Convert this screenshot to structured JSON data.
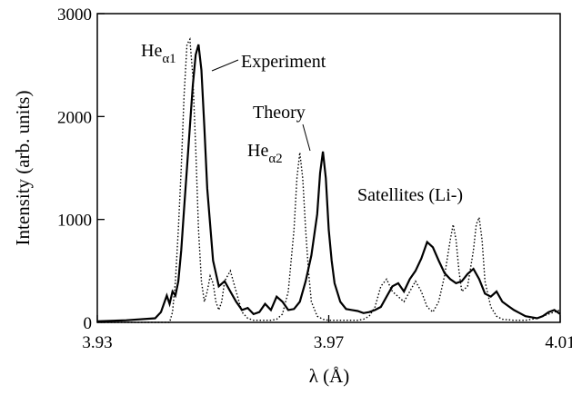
{
  "chart_data": {
    "type": "line",
    "xlabel": "λ (Å)",
    "ylabel": "Intensity (arb. units)",
    "xlim": [
      3.93,
      4.01
    ],
    "ylim": [
      0,
      3000
    ],
    "xticks": [
      "3.93",
      "3.97",
      "4.01"
    ],
    "yticks": [
      "0",
      "1000",
      "2000",
      "3000"
    ],
    "grid": false,
    "annotations": {
      "he_alpha1": {
        "base": "He",
        "sub": "α1"
      },
      "he_alpha2": {
        "base": "He",
        "sub": "α2"
      },
      "experiment": "Experiment",
      "theory": "Theory",
      "satellites": "Satellites (Li-)"
    },
    "series": [
      {
        "name": "Experiment",
        "style": "solid",
        "color": "#000000",
        "x": [
          3.93,
          3.935,
          3.94,
          3.941,
          3.942,
          3.9425,
          3.943,
          3.9435,
          3.944,
          3.9445,
          3.945,
          3.9455,
          3.946,
          3.9465,
          3.947,
          3.9475,
          3.948,
          3.9485,
          3.949,
          3.95,
          3.951,
          3.952,
          3.953,
          3.954,
          3.955,
          3.956,
          3.957,
          3.958,
          3.959,
          3.96,
          3.961,
          3.962,
          3.963,
          3.964,
          3.965,
          3.966,
          3.967,
          3.968,
          3.9685,
          3.969,
          3.9695,
          3.97,
          3.9705,
          3.971,
          3.972,
          3.973,
          3.974,
          3.975,
          3.976,
          3.977,
          3.978,
          3.979,
          3.98,
          3.981,
          3.982,
          3.983,
          3.984,
          3.985,
          3.986,
          3.987,
          3.988,
          3.989,
          3.99,
          3.991,
          3.992,
          3.993,
          3.994,
          3.995,
          3.996,
          3.997,
          3.998,
          3.999,
          4.0,
          4.001,
          4.002,
          4.003,
          4.004,
          4.005,
          4.006,
          4.007,
          4.008,
          4.009,
          4.01
        ],
        "y": [
          10,
          20,
          40,
          100,
          260,
          180,
          300,
          260,
          400,
          700,
          1100,
          1500,
          1900,
          2300,
          2600,
          2700,
          2450,
          1900,
          1300,
          600,
          350,
          400,
          300,
          200,
          120,
          140,
          80,
          100,
          180,
          120,
          250,
          200,
          120,
          130,
          200,
          400,
          650,
          1050,
          1450,
          1660,
          1400,
          900,
          600,
          380,
          200,
          130,
          120,
          110,
          90,
          100,
          120,
          150,
          250,
          350,
          380,
          300,
          420,
          500,
          620,
          780,
          730,
          600,
          480,
          420,
          380,
          400,
          470,
          520,
          420,
          280,
          250,
          300,
          200,
          160,
          120,
          90,
          60,
          50,
          40,
          60,
          100,
          120,
          80
        ]
      },
      {
        "name": "Theory",
        "style": "dotted",
        "color": "#000000",
        "x": [
          3.93,
          3.935,
          3.94,
          3.9425,
          3.943,
          3.9435,
          3.944,
          3.9445,
          3.945,
          3.9455,
          3.946,
          3.9465,
          3.947,
          3.9475,
          3.948,
          3.9485,
          3.949,
          3.9495,
          3.95,
          3.9505,
          3.951,
          3.9515,
          3.952,
          3.953,
          3.954,
          3.955,
          3.956,
          3.957,
          3.958,
          3.959,
          3.96,
          3.961,
          3.962,
          3.963,
          3.964,
          3.9645,
          3.965,
          3.9655,
          3.966,
          3.9665,
          3.967,
          3.968,
          3.969,
          3.97,
          3.971,
          3.972,
          3.973,
          3.974,
          3.975,
          3.976,
          3.977,
          3.978,
          3.979,
          3.98,
          3.981,
          3.982,
          3.983,
          3.984,
          3.985,
          3.986,
          3.987,
          3.988,
          3.989,
          3.99,
          3.991,
          3.9915,
          3.992,
          3.9925,
          3.993,
          3.994,
          3.995,
          3.9955,
          3.996,
          3.9965,
          3.997,
          3.998,
          3.999,
          4.0,
          4.002,
          4.004,
          4.006,
          4.008,
          4.01
        ],
        "y": [
          0,
          0,
          0,
          0,
          100,
          400,
          900,
          1500,
          2200,
          2700,
          2750,
          2400,
          1700,
          900,
          400,
          200,
          300,
          450,
          380,
          200,
          120,
          200,
          400,
          500,
          300,
          100,
          40,
          20,
          20,
          20,
          20,
          30,
          80,
          300,
          900,
          1400,
          1650,
          1400,
          900,
          500,
          200,
          60,
          30,
          20,
          20,
          20,
          20,
          20,
          20,
          30,
          60,
          150,
          350,
          420,
          300,
          250,
          200,
          300,
          400,
          300,
          150,
          100,
          200,
          450,
          800,
          950,
          800,
          500,
          300,
          350,
          700,
          950,
          1020,
          800,
          400,
          150,
          60,
          30,
          20,
          20,
          40,
          80,
          120
        ]
      }
    ]
  }
}
